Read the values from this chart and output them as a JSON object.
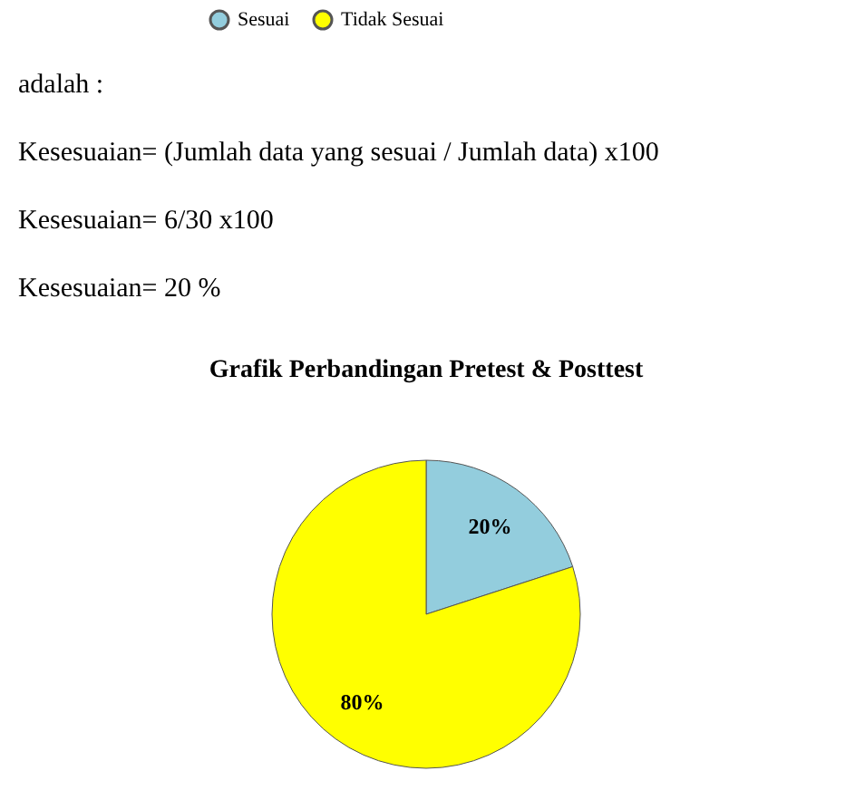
{
  "chart_data": {
    "type": "pie",
    "title": "Grafik Perbandingan Pretest & Posttest",
    "categories": [
      "Sesuai",
      "Tidak Sesuai"
    ],
    "values": [
      20,
      80
    ],
    "colors": [
      "#93cddd",
      "#ffff00"
    ],
    "value_labels": [
      "20%",
      "80%"
    ],
    "legend": "top",
    "annotations": [
      "adalah :",
      "Kesesuaian= (Jumlah data yang sesuai / Jumlah data) x100",
      "Kesesuaian= 6/30 x100",
      "Kesesuaian= 20 %"
    ]
  }
}
